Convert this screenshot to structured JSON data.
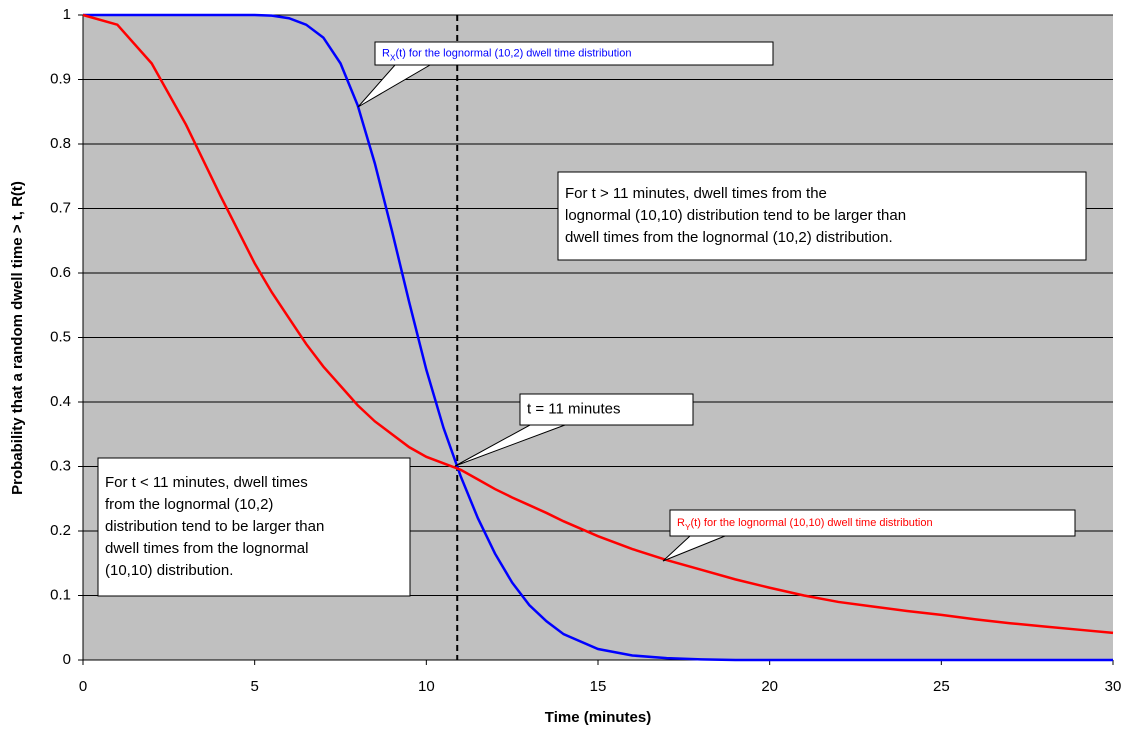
{
  "chart_data": {
    "type": "line",
    "x_label": "Time (minutes)",
    "y_label": "Probability that a random dwell time > t, R(t)",
    "x": [
      0,
      1,
      2,
      3,
      4,
      5,
      5.5,
      6,
      6.5,
      7,
      7.5,
      8,
      8.5,
      9,
      9.5,
      10,
      10.5,
      11,
      11.5,
      12,
      12.5,
      13,
      13.5,
      14,
      15,
      16,
      17,
      18,
      19,
      20,
      21,
      22,
      23,
      24,
      25,
      26,
      27,
      28,
      29,
      30
    ],
    "series": [
      {
        "color": "#0000ff",
        "values": [
          1,
          1,
          1,
          1,
          1,
          1,
          0.999,
          0.995,
          0.985,
          0.965,
          0.925,
          0.86,
          0.77,
          0.665,
          0.555,
          0.45,
          0.36,
          0.285,
          0.22,
          0.165,
          0.12,
          0.085,
          0.06,
          0.04,
          0.017,
          0.007,
          0.003,
          0.001,
          0,
          0,
          0,
          0,
          0,
          0,
          0,
          0,
          0,
          0,
          0,
          0
        ]
      },
      {
        "color": "#ff0000",
        "values": [
          1,
          0.985,
          0.925,
          0.83,
          0.72,
          0.615,
          0.57,
          0.53,
          0.49,
          0.455,
          0.425,
          0.395,
          0.37,
          0.35,
          0.33,
          0.315,
          0.305,
          0.295,
          0.28,
          0.265,
          0.252,
          0.24,
          0.228,
          0.215,
          0.192,
          0.172,
          0.155,
          0.14,
          0.125,
          0.112,
          0.1,
          0.09,
          0.083,
          0.076,
          0.07,
          0.063,
          0.057,
          0.052,
          0.047,
          0.042
        ]
      }
    ],
    "xlim": [
      0,
      30
    ],
    "xticks": [
      0,
      5,
      10,
      15,
      20,
      25,
      30
    ],
    "ylim": [
      0,
      1
    ],
    "yticks": [
      0,
      0.1,
      0.2,
      0.3,
      0.4,
      0.5,
      0.6,
      0.7,
      0.8,
      0.9,
      1
    ],
    "grid": true,
    "vline": 10.9,
    "annotations": [
      {
        "color": "#0000ff",
        "parts": [
          "R",
          "X",
          "(t) for the lognormal (10,2) dwell time distribution"
        ]
      },
      {
        "color": "#000000",
        "lines": [
          "For t > 11 minutes, dwell times from the",
          "lognormal (10,10) distribution tend to be larger than",
          "dwell times from the lognormal (10,2) distribution."
        ]
      },
      {
        "color": "#000000",
        "lines": [
          "t = 11 minutes"
        ]
      },
      {
        "color": "#000000",
        "lines": [
          "For t < 11 minutes, dwell times",
          "from the lognormal (10,2)",
          "distribution tend to be larger than",
          "dwell times from the lognormal",
          "(10,10) distribution."
        ]
      },
      {
        "color": "#ff0000",
        "parts": [
          "R",
          "Y",
          "(t) for the lognormal (10,10) dwell time distribution"
        ]
      }
    ]
  }
}
